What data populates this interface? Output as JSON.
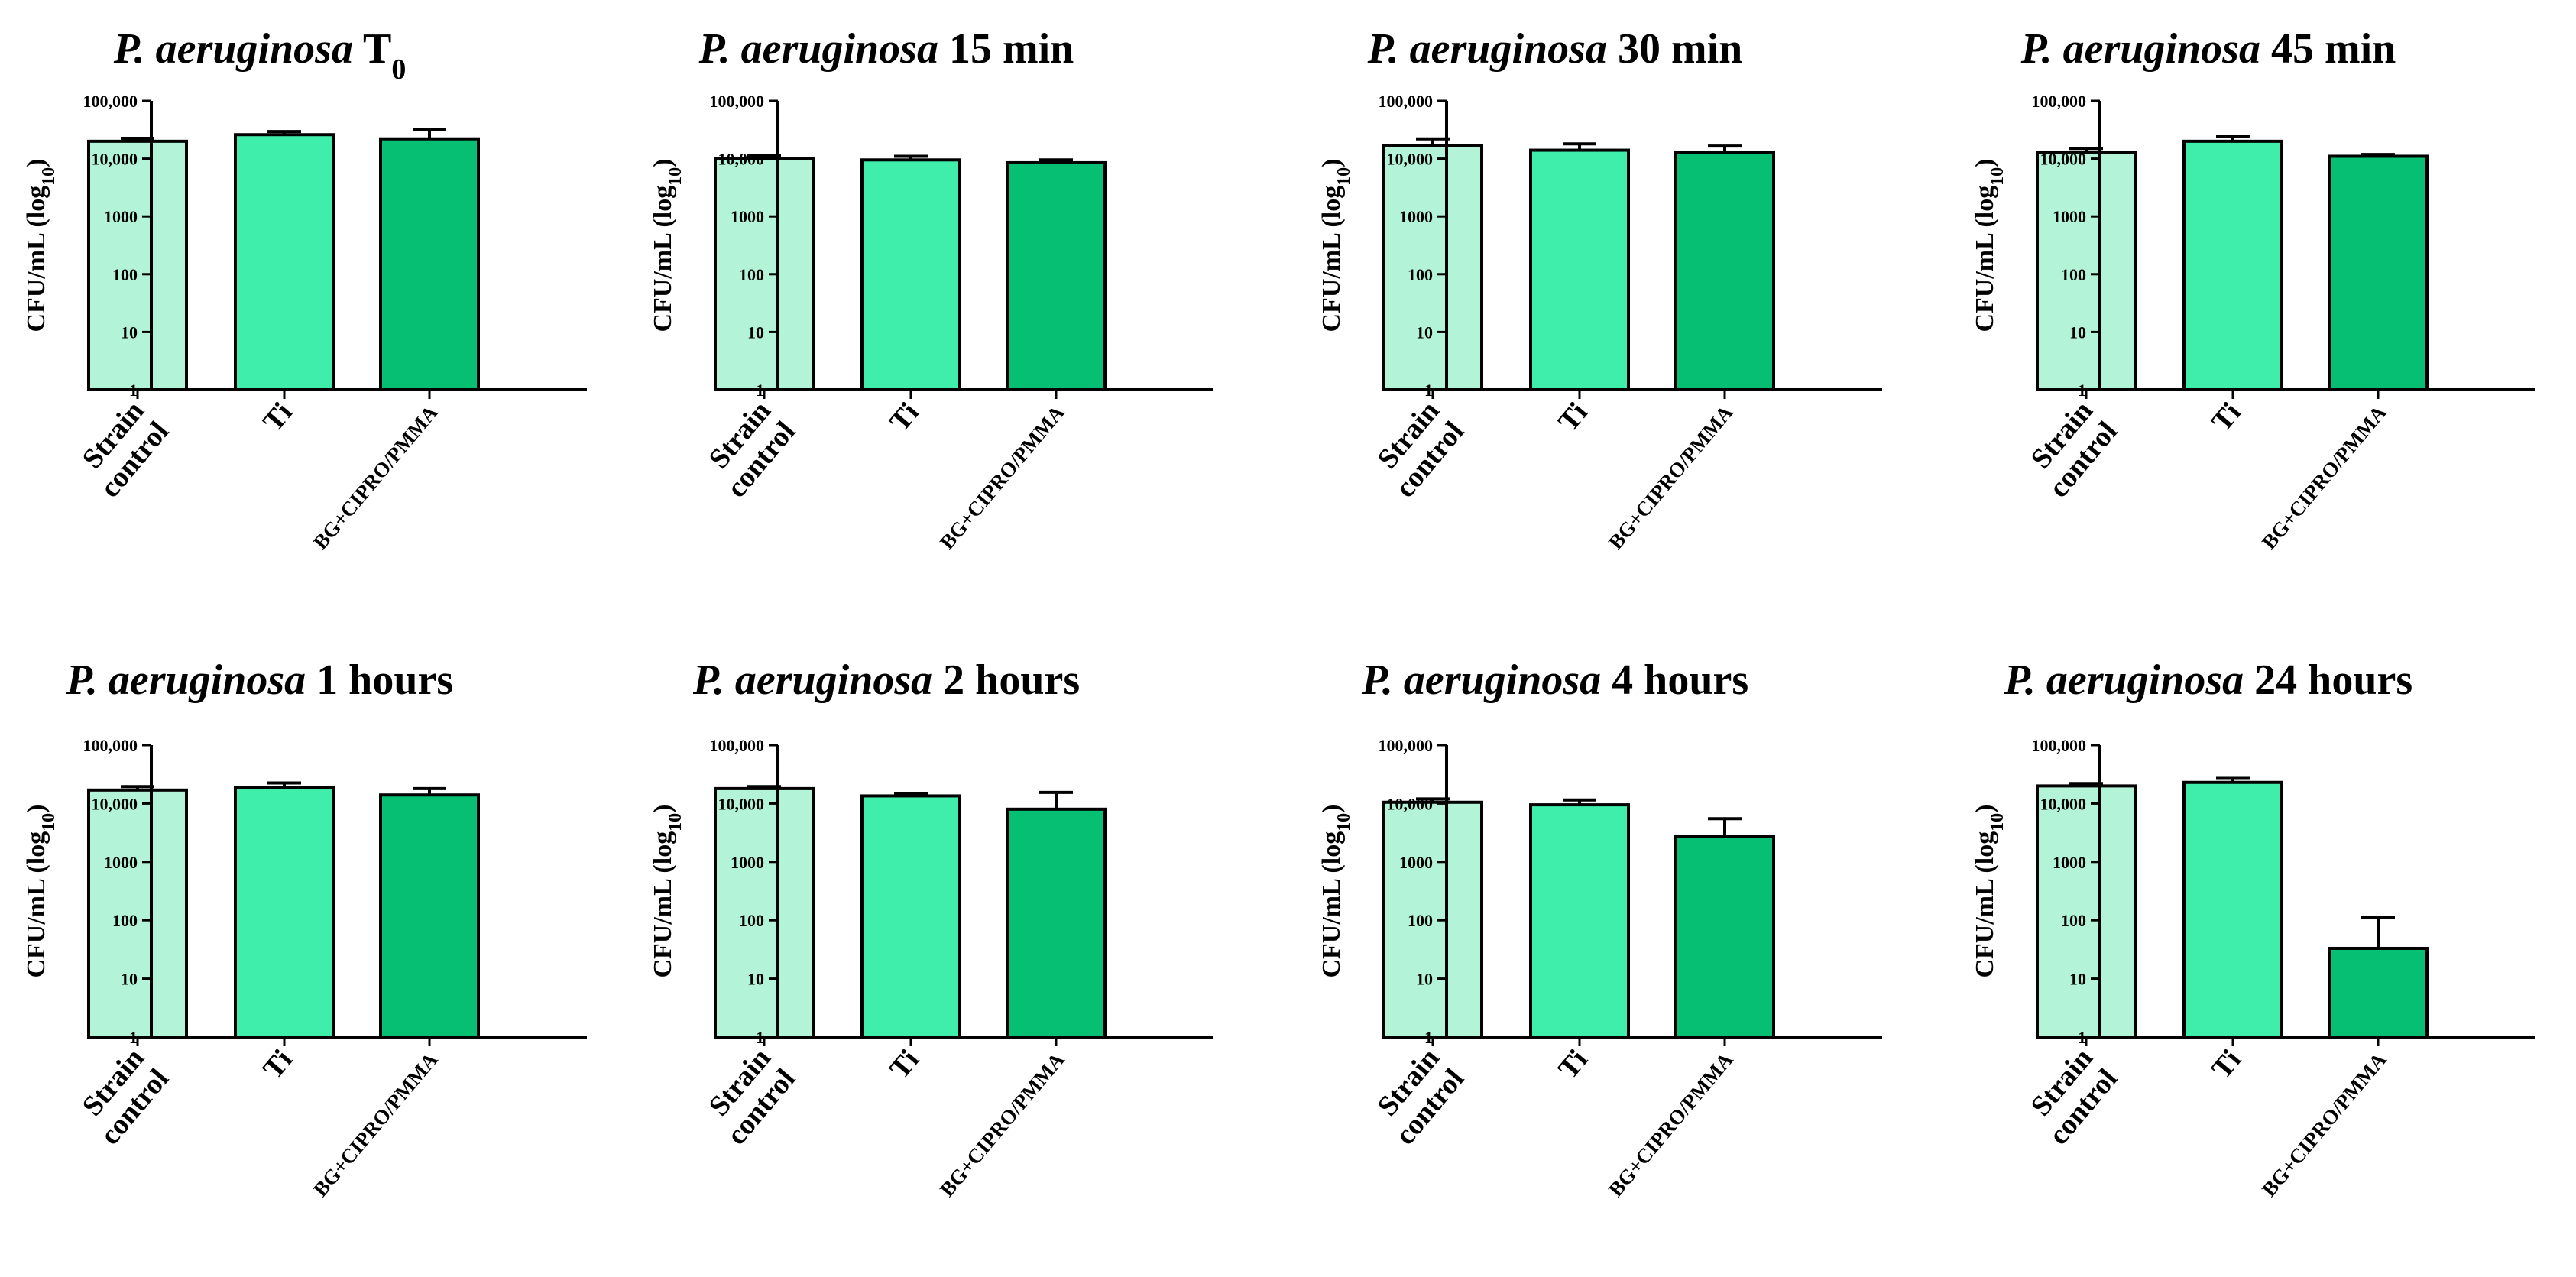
{
  "chart_data": [
    {
      "type": "bar",
      "title_organism": "P. aeruginosa",
      "title_time": "T",
      "title_subscript": "0",
      "ylabel": "CFU/mL (log10)",
      "yscale": "log",
      "ylim": [
        1,
        100000
      ],
      "yticks": [
        "1",
        "10",
        "100",
        "1000",
        "10,000",
        "100,000"
      ],
      "categories": [
        "Strain control",
        "Ti",
        "BG+CIPRO/PMMA"
      ],
      "values": [
        20000,
        26000,
        22000
      ],
      "errors": [
        22500,
        29500,
        31500
      ],
      "colors": [
        "#b3f4d9",
        "#40eeab",
        "#06bf72"
      ]
    },
    {
      "type": "bar",
      "title_organism": "P. aeruginosa",
      "title_time": "15 min",
      "title_subscript": "",
      "ylabel": "CFU/mL (log10)",
      "yscale": "log",
      "ylim": [
        1,
        100000
      ],
      "yticks": [
        "1",
        "10",
        "100",
        "1000",
        "10,000",
        "100,000"
      ],
      "categories": [
        "Strain control",
        "Ti",
        "BG+CIPRO/PMMA"
      ],
      "values": [
        10000,
        9500,
        8500
      ],
      "errors": [
        11500,
        11000,
        9500
      ],
      "colors": [
        "#b3f4d9",
        "#40eeab",
        "#06bf72"
      ]
    },
    {
      "type": "bar",
      "title_organism": "P. aeruginosa",
      "title_time": "30 min",
      "title_subscript": "",
      "ylabel": "CFU/mL (log10)",
      "yscale": "log",
      "ylim": [
        1,
        100000
      ],
      "yticks": [
        "1",
        "10",
        "100",
        "1000",
        "10,000",
        "100,000"
      ],
      "categories": [
        "Strain control",
        "Ti",
        "BG+CIPRO/PMMA"
      ],
      "values": [
        17000,
        14000,
        13000
      ],
      "errors": [
        22000,
        18000,
        16500
      ],
      "colors": [
        "#b3f4d9",
        "#40eeab",
        "#06bf72"
      ]
    },
    {
      "type": "bar",
      "title_organism": "P. aeruginosa",
      "title_time": "45 min",
      "title_subscript": "",
      "ylabel": "CFU/mL (log10)",
      "yscale": "log",
      "ylim": [
        1,
        100000
      ],
      "yticks": [
        "1",
        "10",
        "100",
        "1000",
        "10,000",
        "100,000"
      ],
      "categories": [
        "Strain control",
        "Ti",
        "BG+CIPRO/PMMA"
      ],
      "values": [
        13000,
        20000,
        11000
      ],
      "errors": [
        15000,
        24000,
        11800
      ],
      "colors": [
        "#b3f4d9",
        "#40eeab",
        "#06bf72"
      ]
    },
    {
      "type": "bar",
      "title_organism": "P. aeruginosa",
      "title_time": "1 hours",
      "title_subscript": "",
      "ylabel": "CFU/mL (log10)",
      "yscale": "log",
      "ylim": [
        1,
        100000
      ],
      "yticks": [
        "1",
        "10",
        "100",
        "1000",
        "10,000",
        "100,000"
      ],
      "categories": [
        "Strain control",
        "Ti",
        "BG+CIPRO/PMMA"
      ],
      "values": [
        17000,
        19000,
        14000
      ],
      "errors": [
        19500,
        22500,
        18000
      ],
      "colors": [
        "#b3f4d9",
        "#40eeab",
        "#06bf72"
      ]
    },
    {
      "type": "bar",
      "title_organism": "P. aeruginosa",
      "title_time": "2 hours",
      "title_subscript": "",
      "ylabel": "CFU/mL (log10)",
      "yscale": "log",
      "ylim": [
        1,
        100000
      ],
      "yticks": [
        "1",
        "10",
        "100",
        "1000",
        "10,000",
        "100,000"
      ],
      "categories": [
        "Strain control",
        "Ti",
        "BG+CIPRO/PMMA"
      ],
      "values": [
        18000,
        13500,
        8000
      ],
      "errors": [
        19500,
        15000,
        15500
      ],
      "colors": [
        "#b3f4d9",
        "#40eeab",
        "#06bf72"
      ]
    },
    {
      "type": "bar",
      "title_organism": "P. aeruginosa",
      "title_time": "4 hours",
      "title_subscript": "",
      "ylabel": "CFU/mL (log10)",
      "yscale": "log",
      "ylim": [
        1,
        100000
      ],
      "yticks": [
        "1",
        "10",
        "100",
        "1000",
        "10,000",
        "100,000"
      ],
      "categories": [
        "Strain control",
        "Ti",
        "BG+CIPRO/PMMA"
      ],
      "values": [
        10500,
        9500,
        2700
      ],
      "errors": [
        12000,
        11500,
        5500
      ],
      "colors": [
        "#b3f4d9",
        "#40eeab",
        "#06bf72"
      ]
    },
    {
      "type": "bar",
      "title_organism": "P. aeruginosa",
      "title_time": "24 hours",
      "title_subscript": "",
      "ylabel": "CFU/mL (log10)",
      "yscale": "log",
      "ylim": [
        1,
        100000
      ],
      "yticks": [
        "1",
        "10",
        "100",
        "1000",
        "10,000",
        "100,000"
      ],
      "categories": [
        "Strain control",
        "Ti",
        "BG+CIPRO/PMMA"
      ],
      "values": [
        20000,
        23000,
        33
      ],
      "errors": [
        22000,
        27000,
        110
      ],
      "colors": [
        "#b3f4d9",
        "#40eeab",
        "#06bf72"
      ]
    }
  ]
}
